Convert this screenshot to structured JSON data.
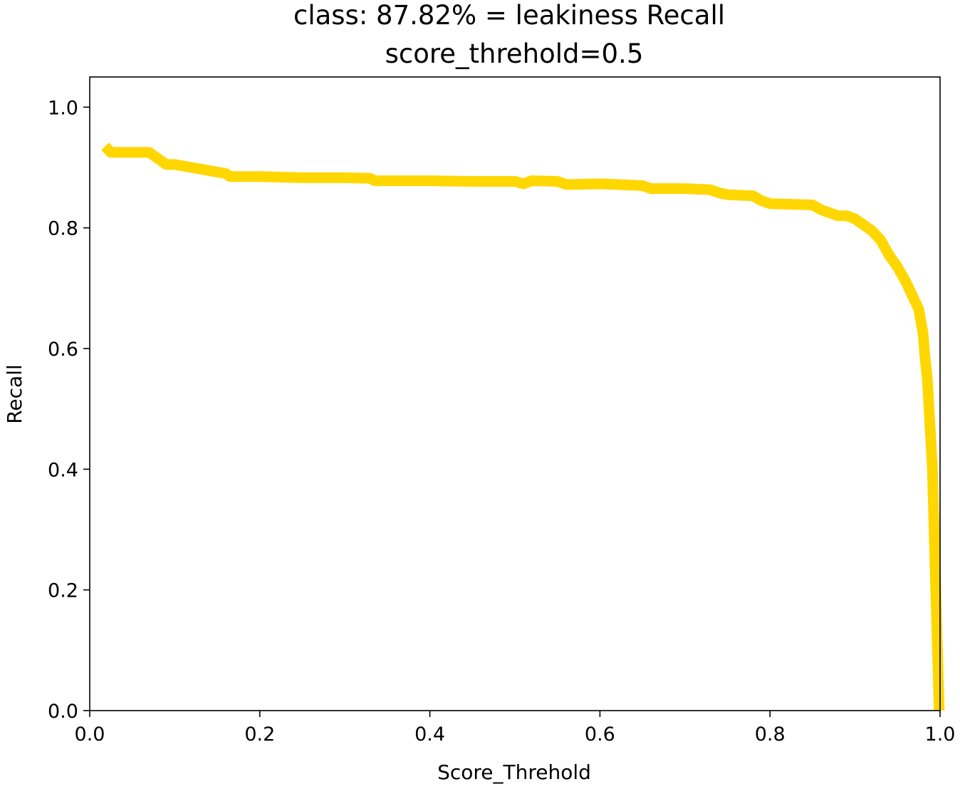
{
  "chart_data": {
    "type": "line",
    "title": "class: 87.82% = leakiness Recall",
    "subtitle": "score_threhold=0.5",
    "xlabel": "Score_Threhold",
    "ylabel": "Recall",
    "xlim": [
      0.0,
      1.0
    ],
    "ylim": [
      0.0,
      1.05
    ],
    "xticks": [
      "0.0",
      "0.2",
      "0.4",
      "0.6",
      "0.8",
      "1.0"
    ],
    "yticks": [
      "0.0",
      "0.2",
      "0.4",
      "0.6",
      "0.8",
      "1.0"
    ],
    "grid": false,
    "line_color": "#FFD700",
    "series": [
      {
        "x": [
          0.018,
          0.025,
          0.035,
          0.05,
          0.07,
          0.08,
          0.09,
          0.1,
          0.12,
          0.14,
          0.16,
          0.165,
          0.17,
          0.2,
          0.25,
          0.3,
          0.33,
          0.335,
          0.34,
          0.4,
          0.45,
          0.5,
          0.51,
          0.52,
          0.55,
          0.56,
          0.57,
          0.6,
          0.65,
          0.66,
          0.7,
          0.73,
          0.74,
          0.75,
          0.78,
          0.79,
          0.8,
          0.85,
          0.86,
          0.87,
          0.88,
          0.89,
          0.9,
          0.91,
          0.92,
          0.93,
          0.94,
          0.95,
          0.96,
          0.97,
          0.975,
          0.98,
          0.982,
          0.985,
          0.987,
          0.989,
          0.991,
          0.993,
          0.995,
          0.997,
          0.999
        ],
        "y": [
          0.935,
          0.925,
          0.925,
          0.925,
          0.925,
          0.915,
          0.905,
          0.905,
          0.9,
          0.895,
          0.89,
          0.885,
          0.885,
          0.885,
          0.883,
          0.883,
          0.882,
          0.878,
          0.878,
          0.878,
          0.877,
          0.877,
          0.873,
          0.878,
          0.877,
          0.872,
          0.872,
          0.873,
          0.87,
          0.865,
          0.865,
          0.863,
          0.858,
          0.855,
          0.853,
          0.845,
          0.84,
          0.838,
          0.83,
          0.825,
          0.82,
          0.82,
          0.815,
          0.805,
          0.795,
          0.78,
          0.755,
          0.735,
          0.71,
          0.68,
          0.665,
          0.625,
          0.59,
          0.55,
          0.5,
          0.45,
          0.4,
          0.3,
          0.2,
          0.1,
          0.0
        ]
      }
    ]
  }
}
